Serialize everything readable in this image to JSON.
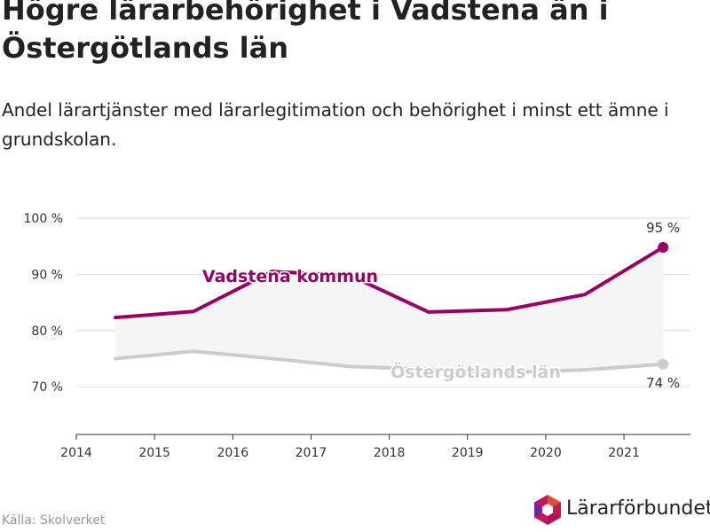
{
  "title": "Högre lärarbehörighet i Vadstena än i Östergötlands län",
  "subtitle": "Andel lärartjänster med lärarlegitimation och behörighet i minst ett ämne i grundskolan.",
  "source": "Källa: Skolverket",
  "logo_text": "Lärarförbundet",
  "colors": {
    "vadstena": "#990066",
    "lan": "#cccccc",
    "band": "#f5f5f5",
    "grid": "#dddddd"
  },
  "chart_data": {
    "type": "line",
    "x_ticks": [
      2014,
      2015,
      2016,
      2017,
      2018,
      2019,
      2020,
      2021
    ],
    "y_ticks": [
      70,
      80,
      90,
      100
    ],
    "y_tick_labels": [
      "70 %",
      "80 %",
      "90 %",
      "100 %"
    ],
    "ylim": [
      61.5,
      100
    ],
    "xlim": [
      2014,
      2021.85
    ],
    "series": [
      {
        "name": "Vadstena kommun",
        "x": [
          2014.5,
          2015.5,
          2016.5,
          2017.5,
          2018.5,
          2019.5,
          2020.5,
          2021.5
        ],
        "values": [
          82.3,
          83.4,
          90.5,
          89.8,
          83.3,
          83.7,
          86.4,
          94.8
        ],
        "end_label": "95 %"
      },
      {
        "name": "Östergötlands län",
        "x": [
          2014.5,
          2015.5,
          2016.5,
          2017.5,
          2018.5,
          2019.5,
          2020.5,
          2021.5
        ],
        "values": [
          75.0,
          76.3,
          75.0,
          73.6,
          73.1,
          72.5,
          73.0,
          74.0
        ],
        "end_label": "74 %"
      }
    ]
  }
}
